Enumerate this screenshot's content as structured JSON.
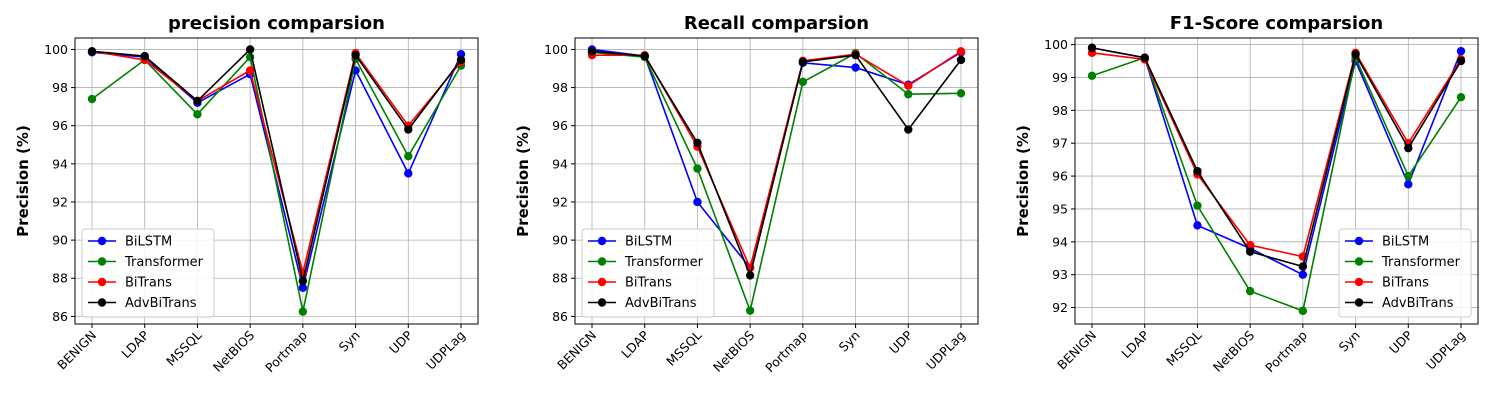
{
  "chart_data": [
    {
      "type": "line",
      "title": "precision comparsion",
      "xlabel": "",
      "ylabel": "Precision (%)",
      "categories": [
        "BENIGN",
        "LDAP",
        "MSSQL",
        "NetBIOS",
        "Portmap",
        "Syn",
        "UDP",
        "UDPLag"
      ],
      "ylim": [
        85.6,
        100.6
      ],
      "yticks": [
        86,
        88,
        90,
        92,
        94,
        96,
        98,
        100
      ],
      "grid": true,
      "legend_position": "lower-left",
      "series": [
        {
          "name": "BiLSTM",
          "color": "#0000ff",
          "values": [
            99.85,
            99.6,
            97.2,
            98.7,
            87.5,
            98.9,
            93.5,
            99.75
          ]
        },
        {
          "name": "Transformer",
          "color": "#008000",
          "values": [
            97.4,
            99.45,
            96.6,
            99.6,
            86.25,
            99.5,
            94.4,
            99.15
          ]
        },
        {
          "name": "BiTrans",
          "color": "#ff0000",
          "values": [
            99.9,
            99.45,
            97.3,
            98.9,
            88.3,
            99.8,
            96.0,
            99.35
          ]
        },
        {
          "name": "AdvBiTrans",
          "color": "#000000",
          "values": [
            99.9,
            99.65,
            97.3,
            100.0,
            87.85,
            99.7,
            95.8,
            99.45
          ]
        }
      ]
    },
    {
      "type": "line",
      "title": "Recall comparsion",
      "xlabel": "",
      "ylabel": "Precision (%)",
      "categories": [
        "BENIGN",
        "LDAP",
        "MSSQL",
        "NetBIOS",
        "Portmap",
        "Syn",
        "UDP",
        "UDPLag"
      ],
      "ylim": [
        85.6,
        100.6
      ],
      "yticks": [
        86,
        88,
        90,
        92,
        94,
        96,
        98,
        100
      ],
      "grid": true,
      "legend_position": "lower-left",
      "series": [
        {
          "name": "BiLSTM",
          "color": "#0000ff",
          "values": [
            100.0,
            99.65,
            92.0,
            88.55,
            99.3,
            99.05,
            98.15,
            99.85
          ]
        },
        {
          "name": "Transformer",
          "color": "#008000",
          "values": [
            99.85,
            99.6,
            93.75,
            86.3,
            98.3,
            99.8,
            97.65,
            97.7
          ]
        },
        {
          "name": "BiTrans",
          "color": "#ff0000",
          "values": [
            99.7,
            99.7,
            94.9,
            88.55,
            99.4,
            99.75,
            98.1,
            99.9
          ]
        },
        {
          "name": "AdvBiTrans",
          "color": "#000000",
          "values": [
            99.9,
            99.65,
            95.1,
            88.15,
            99.35,
            99.7,
            95.8,
            99.45
          ]
        }
      ]
    },
    {
      "type": "line",
      "title": "F1-Score comparsion",
      "xlabel": "",
      "ylabel": "Precision (%)",
      "categories": [
        "BENIGN",
        "LDAP",
        "MSSQL",
        "NetBIOS",
        "Portmap",
        "Syn",
        "UDP",
        "UDPLag"
      ],
      "ylim": [
        91.5,
        100.2
      ],
      "yticks": [
        92,
        93,
        94,
        95,
        96,
        97,
        98,
        99,
        100
      ],
      "grid": true,
      "legend_position": "lower-right",
      "series": [
        {
          "name": "BiLSTM",
          "color": "#0000ff",
          "values": [
            99.9,
            99.6,
            94.5,
            93.8,
            93.0,
            99.5,
            95.75,
            99.8
          ]
        },
        {
          "name": "Transformer",
          "color": "#008000",
          "values": [
            99.05,
            99.6,
            95.1,
            92.5,
            91.9,
            99.6,
            96.0,
            98.4
          ]
        },
        {
          "name": "BiTrans",
          "color": "#ff0000",
          "values": [
            99.75,
            99.55,
            96.05,
            93.9,
            93.55,
            99.75,
            97.0,
            99.55
          ]
        },
        {
          "name": "AdvBiTrans",
          "color": "#000000",
          "values": [
            99.9,
            99.6,
            96.15,
            93.7,
            93.25,
            99.7,
            96.85,
            99.5
          ]
        }
      ]
    }
  ]
}
